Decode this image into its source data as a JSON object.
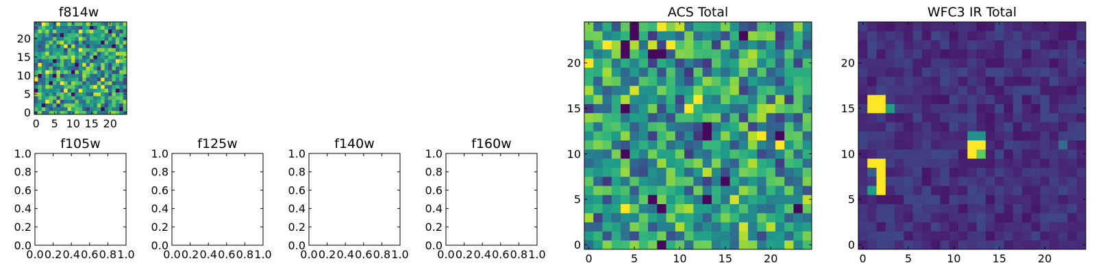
{
  "chart_data": [
    {
      "id": "f814w",
      "type": "heatmap",
      "title": "f814w",
      "grid_size": 25,
      "xlim": [
        -0.5,
        24.5
      ],
      "ylim": [
        -0.5,
        24.5
      ],
      "xticks": [
        0,
        5,
        10,
        15,
        20
      ],
      "yticks": [
        0,
        5,
        10,
        15,
        20
      ],
      "colormap": "viridis",
      "seed": 814,
      "pattern": "noise"
    },
    {
      "id": "f105w",
      "type": "heatmap",
      "title": "f105w",
      "empty": true,
      "xlim": [
        0,
        1
      ],
      "ylim": [
        0,
        1
      ],
      "xticks": [
        "0.0",
        "0.2",
        "0.4",
        "0.6",
        "0.8",
        "1.0"
      ],
      "yticks": [
        "0.0",
        "0.2",
        "0.4",
        "0.6",
        "0.8",
        "1.0"
      ]
    },
    {
      "id": "f125w",
      "type": "heatmap",
      "title": "f125w",
      "empty": true,
      "xlim": [
        0,
        1
      ],
      "ylim": [
        0,
        1
      ],
      "xticks": [
        "0.0",
        "0.2",
        "0.4",
        "0.6",
        "0.8",
        "1.0"
      ],
      "yticks": [
        "0.0",
        "0.2",
        "0.4",
        "0.6",
        "0.8",
        "1.0"
      ]
    },
    {
      "id": "f140w",
      "type": "heatmap",
      "title": "f140w",
      "empty": true,
      "xlim": [
        0,
        1
      ],
      "ylim": [
        0,
        1
      ],
      "xticks": [
        "0.0",
        "0.2",
        "0.4",
        "0.6",
        "0.8",
        "1.0"
      ],
      "yticks": [
        "0.0",
        "0.2",
        "0.4",
        "0.6",
        "0.8",
        "1.0"
      ]
    },
    {
      "id": "f160w",
      "type": "heatmap",
      "title": "f160w",
      "empty": true,
      "xlim": [
        0,
        1
      ],
      "ylim": [
        0,
        1
      ],
      "xticks": [
        "0.0",
        "0.2",
        "0.4",
        "0.6",
        "0.8",
        "1.0"
      ],
      "yticks": [
        "0.0",
        "0.2",
        "0.4",
        "0.6",
        "0.8",
        "1.0"
      ]
    },
    {
      "id": "acs-total",
      "type": "heatmap",
      "title": "ACS Total",
      "grid_size": 25,
      "xlim": [
        -0.5,
        24.5
      ],
      "ylim": [
        -0.5,
        24.5
      ],
      "xticks": [
        0,
        5,
        10,
        15,
        20
      ],
      "yticks": [
        0,
        5,
        10,
        15,
        20
      ],
      "colormap": "viridis",
      "seed": 2024,
      "pattern": "noise"
    },
    {
      "id": "wfc3-ir-total",
      "type": "heatmap",
      "title": "WFC3 IR Total",
      "grid_size": 25,
      "xlim": [
        -0.5,
        24.5
      ],
      "ylim": [
        -0.5,
        24.5
      ],
      "xticks": [
        0,
        5,
        10,
        15,
        20
      ],
      "yticks": [
        0,
        5,
        10,
        15,
        20
      ],
      "colormap": "viridis",
      "seed": 3,
      "pattern": "background",
      "hot_pixels": [
        {
          "x": 1,
          "y": 15,
          "v": 1.0
        },
        {
          "x": 2,
          "y": 15,
          "v": 1.0
        },
        {
          "x": 1,
          "y": 16,
          "v": 1.0
        },
        {
          "x": 2,
          "y": 16,
          "v": 1.0
        },
        {
          "x": 3,
          "y": 15,
          "v": 0.55
        },
        {
          "x": 1,
          "y": 9,
          "v": 1.0
        },
        {
          "x": 2,
          "y": 9,
          "v": 1.0
        },
        {
          "x": 2,
          "y": 8,
          "v": 1.0
        },
        {
          "x": 2,
          "y": 7,
          "v": 1.0
        },
        {
          "x": 2,
          "y": 6,
          "v": 1.0
        },
        {
          "x": 1,
          "y": 6,
          "v": 0.55
        },
        {
          "x": 1,
          "y": 8,
          "v": 0.3
        },
        {
          "x": 12,
          "y": 10,
          "v": 1.0
        },
        {
          "x": 12,
          "y": 11,
          "v": 1.0
        },
        {
          "x": 13,
          "y": 11,
          "v": 1.0
        },
        {
          "x": 13,
          "y": 10,
          "v": 0.75
        },
        {
          "x": 12,
          "y": 12,
          "v": 0.5
        },
        {
          "x": 13,
          "y": 12,
          "v": 0.5
        },
        {
          "x": 22,
          "y": 11,
          "v": 0.35
        }
      ]
    }
  ]
}
